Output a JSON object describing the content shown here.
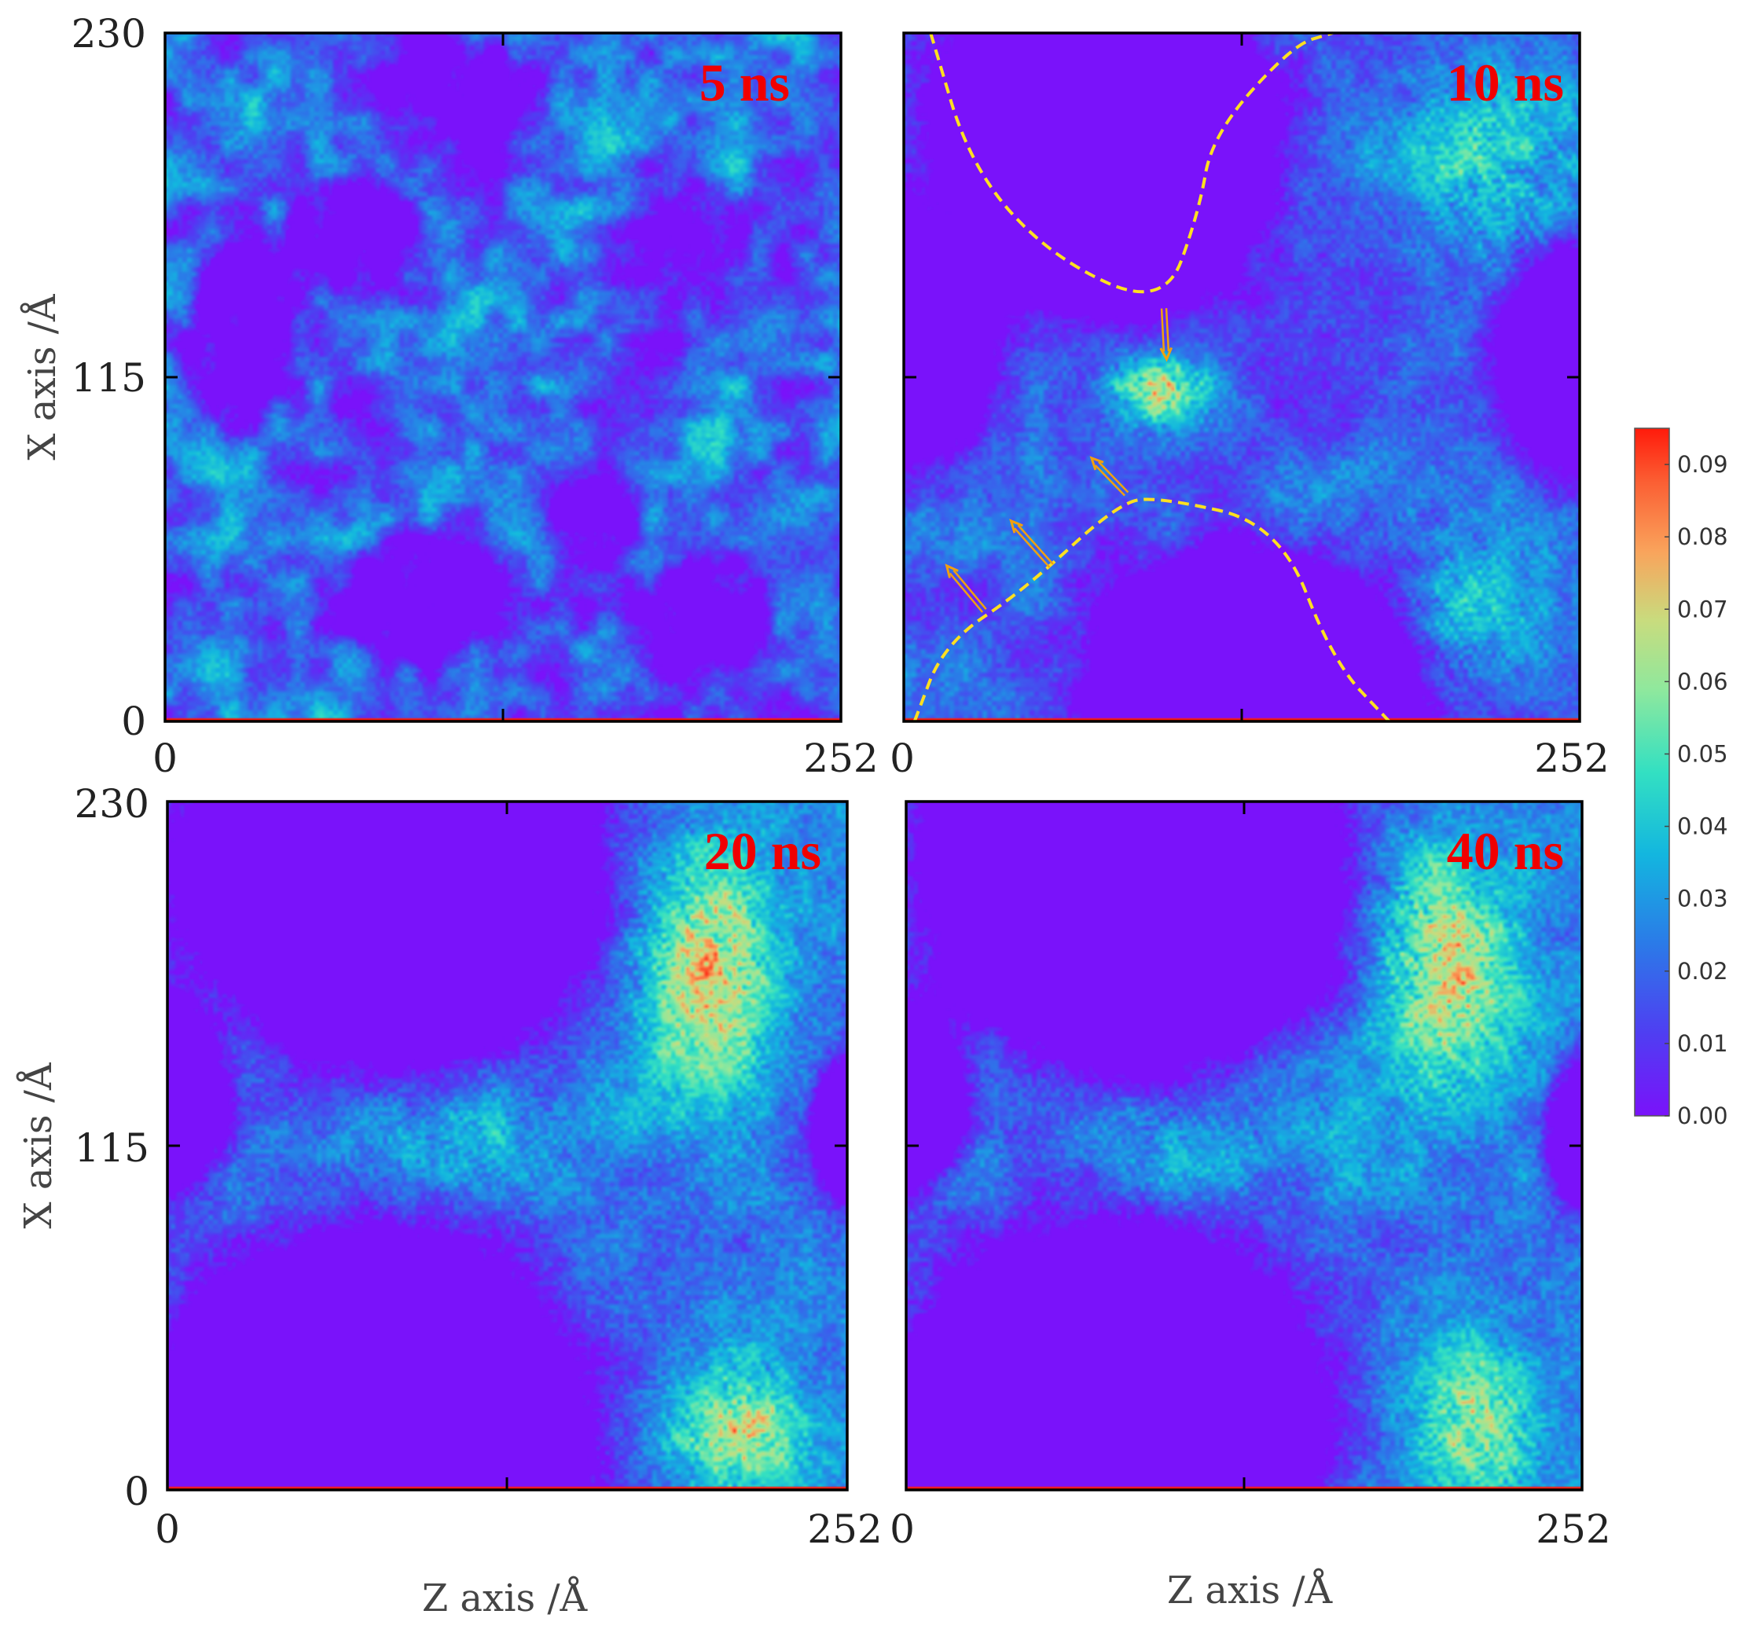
{
  "chart_data": {
    "type": "heatmap",
    "colormap": "rainbow",
    "colorbar": {
      "min": 0.0,
      "max": 0.095,
      "ticks": [
        "0.09",
        "0.08",
        "0.07",
        "0.06",
        "0.05",
        "0.04",
        "0.03",
        "0.02",
        "0.01",
        "0.00"
      ],
      "tick_values": [
        0.09,
        0.08,
        0.07,
        0.06,
        0.05,
        0.04,
        0.03,
        0.02,
        0.01,
        0.0
      ]
    },
    "panels": [
      {
        "id": "p5",
        "time_label": "5 ns",
        "xlabel": "",
        "ylabel": "X axis /Å",
        "x_ticks": [
          "0",
          "252"
        ],
        "y_ticks": [
          "230",
          "115",
          "0"
        ],
        "xlim": [
          0,
          252
        ],
        "ylim": [
          0,
          230
        ],
        "pattern": "dispersed-network",
        "blobs": [
          {
            "z": 95,
            "x": 40,
            "rz": 30,
            "rx": 22,
            "v": -0.03
          },
          {
            "z": 70,
            "x": 160,
            "rz": 28,
            "rx": 20,
            "v": -0.03
          },
          {
            "z": 30,
            "x": 130,
            "rz": 22,
            "rx": 26,
            "v": -0.03
          },
          {
            "z": 185,
            "x": 155,
            "rz": 22,
            "rx": 20,
            "v": -0.03
          },
          {
            "z": 200,
            "x": 35,
            "rz": 24,
            "rx": 20,
            "v": -0.03
          },
          {
            "z": 160,
            "x": 70,
            "rz": 18,
            "rx": 18,
            "v": -0.025
          },
          {
            "z": 110,
            "x": 210,
            "rz": 30,
            "rx": 18,
            "v": -0.03
          },
          {
            "z": 210,
            "x": 95,
            "rz": 16,
            "rx": 16,
            "v": 0.012
          },
          {
            "z": 120,
            "x": 90,
            "rz": 20,
            "rx": 18,
            "v": 0.01
          },
          {
            "z": 25,
            "x": 195,
            "rz": 16,
            "rx": 16,
            "v": 0.01
          },
          {
            "z": 170,
            "x": 200,
            "rz": 14,
            "rx": 14,
            "v": 0.012
          }
        ]
      },
      {
        "id": "p10",
        "time_label": "10 ns",
        "xlabel": "",
        "ylabel": "",
        "x_ticks": [
          "0",
          "252"
        ],
        "y_ticks": [],
        "xlim": [
          0,
          252
        ],
        "ylim": [
          0,
          230
        ],
        "pattern": "coarsening",
        "blobs": [
          {
            "z": 75,
            "x": 195,
            "rz": 60,
            "rx": 55,
            "v": -0.06
          },
          {
            "z": 130,
            "x": 10,
            "rz": 60,
            "rx": 45,
            "v": -0.06
          },
          {
            "z": 0,
            "x": 125,
            "rz": 32,
            "rx": 38,
            "v": -0.05
          },
          {
            "z": 252,
            "x": 120,
            "rz": 30,
            "rx": 40,
            "v": -0.05
          },
          {
            "z": 220,
            "x": 190,
            "rz": 38,
            "rx": 40,
            "v": 0.03
          },
          {
            "z": 95,
            "x": 112,
            "rz": 20,
            "rx": 14,
            "v": 0.045
          },
          {
            "z": 210,
            "x": 40,
            "rz": 35,
            "rx": 40,
            "v": 0.02
          },
          {
            "z": 145,
            "x": 70,
            "rz": 22,
            "rx": 22,
            "v": 0.01
          }
        ],
        "annotations": {
          "boundaries": [
            [
              [
                10,
                230
              ],
              [
                25,
                185
              ],
              [
                55,
                155
              ],
              [
                97,
                138
              ],
              [
                110,
                170
              ],
              [
                115,
                196
              ],
              [
                145,
                226
              ],
              [
                160,
                230
              ]
            ],
            [
              [
                4,
                0
              ],
              [
                15,
                26
              ],
              [
                45,
                44
              ],
              [
                80,
                73
              ],
              [
                95,
                75
              ],
              [
                140,
                66
              ],
              [
                160,
                20
              ],
              [
                181,
                0
              ]
            ]
          ],
          "arrows": [
            [
              [
                97,
                138
              ],
              [
                98,
                121
              ]
            ],
            [
              [
                30,
                37
              ],
              [
                16,
                52
              ]
            ],
            [
              [
                55,
                52
              ],
              [
                40,
                67
              ]
            ],
            [
              [
                83,
                76
              ],
              [
                70,
                88
              ]
            ]
          ]
        }
      },
      {
        "id": "p20",
        "time_label": "20 ns",
        "xlabel": "",
        "ylabel": "X axis /Å",
        "x_ticks": [
          "0",
          "252"
        ],
        "y_ticks": [
          "230",
          "115",
          "0"
        ],
        "xlim": [
          0,
          252
        ],
        "ylim": [
          0,
          230
        ],
        "pattern": "phase-separated",
        "blobs": [
          {
            "z": 85,
            "x": 205,
            "rz": 75,
            "rx": 60,
            "v": -0.075
          },
          {
            "z": 75,
            "x": 20,
            "rz": 75,
            "rx": 65,
            "v": -0.075
          },
          {
            "z": 0,
            "x": 130,
            "rz": 22,
            "rx": 30,
            "v": -0.05
          },
          {
            "z": 252,
            "x": 120,
            "rz": 14,
            "rx": 25,
            "v": -0.04
          },
          {
            "z": 200,
            "x": 175,
            "rz": 28,
            "rx": 48,
            "v": 0.045
          },
          {
            "z": 212,
            "x": 20,
            "rz": 26,
            "rx": 28,
            "v": 0.04
          },
          {
            "z": 110,
            "x": 118,
            "rz": 45,
            "rx": 22,
            "v": 0.015
          }
        ]
      },
      {
        "id": "p40",
        "time_label": "40 ns",
        "xlabel": "",
        "ylabel": "",
        "x_ticks": [
          "0",
          "252"
        ],
        "y_ticks": [],
        "xlim": [
          0,
          252
        ],
        "ylim": [
          0,
          230
        ],
        "pattern": "phase-separated",
        "blobs": [
          {
            "z": 85,
            "x": 205,
            "rz": 75,
            "rx": 60,
            "v": -0.075
          },
          {
            "z": 75,
            "x": 20,
            "rz": 75,
            "rx": 65,
            "v": -0.075
          },
          {
            "z": 0,
            "x": 130,
            "rz": 22,
            "rx": 30,
            "v": -0.05
          },
          {
            "z": 252,
            "x": 120,
            "rz": 14,
            "rx": 25,
            "v": -0.04
          },
          {
            "z": 200,
            "x": 175,
            "rz": 28,
            "rx": 48,
            "v": 0.045
          },
          {
            "z": 212,
            "x": 20,
            "rz": 26,
            "rx": 28,
            "v": 0.04
          },
          {
            "z": 110,
            "x": 118,
            "rz": 45,
            "rx": 22,
            "v": 0.015
          }
        ]
      }
    ],
    "shared_xlabel": "Z axis /Å"
  }
}
